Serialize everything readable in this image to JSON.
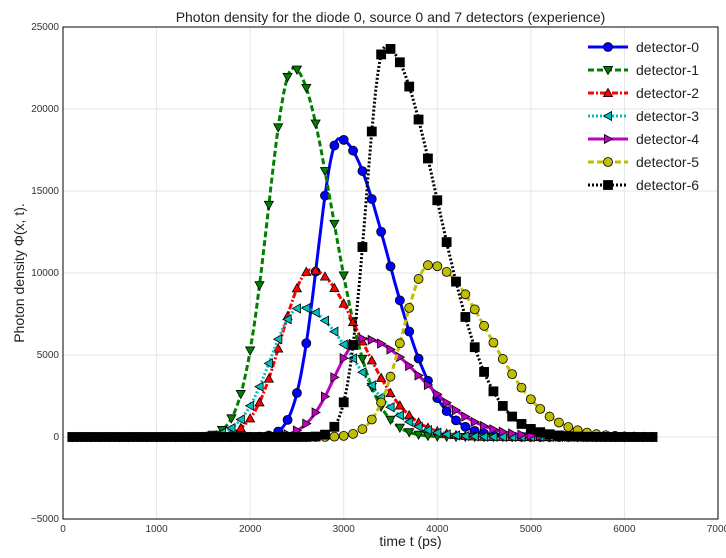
{
  "chart_data": {
    "type": "line",
    "title": "Photon density for the diode 0, source 0 and 7 detectors  (experience)",
    "xlabel": "time t (ps)",
    "ylabel": "Photon density Φ(x, t).",
    "xlim": [
      0,
      7000
    ],
    "ylim": [
      -5000,
      25000
    ],
    "xticks": [
      0,
      1000,
      2000,
      3000,
      4000,
      5000,
      6000,
      7000
    ],
    "xtick_labels": [
      "0",
      "1000",
      "2000",
      "3000",
      "4000",
      "5000",
      "6000",
      "7000"
    ],
    "yticks": [
      -5000,
      0,
      5000,
      10000,
      15000,
      20000,
      25000
    ],
    "ytick_labels": [
      "−5000",
      "0",
      "5000",
      "10000",
      "15000",
      "20000",
      "25000"
    ],
    "grid": true,
    "legend_position": "top-right",
    "series": [
      {
        "name": "detector-0",
        "color": "#0000ff",
        "linestyle": "solid",
        "marker": "circle",
        "peak_x": 2950,
        "peak_y": 18200,
        "sigma_left": 230,
        "sigma_right": 520
      },
      {
        "name": "detector-1",
        "color": "#008000",
        "linestyle": "dashed",
        "marker": "triangle-down",
        "peak_x": 2460,
        "peak_y": 22500,
        "sigma_left": 270,
        "sigma_right": 420
      },
      {
        "name": "detector-2",
        "color": "#ff0000",
        "linestyle": "dashdot",
        "marker": "triangle-up",
        "peak_x": 2650,
        "peak_y": 10200,
        "sigma_left": 310,
        "sigma_right": 520
      },
      {
        "name": "detector-3",
        "color": "#00bfbf",
        "linestyle": "dotted",
        "marker": "triangle-left",
        "peak_x": 2540,
        "peak_y": 7900,
        "sigma_left": 320,
        "sigma_right": 560
      },
      {
        "name": "detector-4",
        "color": "#bf00bf",
        "linestyle": "solid",
        "marker": "triangle-right",
        "peak_x": 3200,
        "peak_y": 6000,
        "sigma_left": 300,
        "sigma_right": 620
      },
      {
        "name": "detector-5",
        "color": "#bfbf00",
        "linestyle": "dashed",
        "marker": "circle",
        "peak_x": 3920,
        "peak_y": 10500,
        "sigma_left": 290,
        "sigma_right": 620
      },
      {
        "name": "detector-6",
        "color": "#000000",
        "linestyle": "dotted",
        "marker": "square",
        "peak_x": 3440,
        "peak_y": 23800,
        "sigma_left": 200,
        "sigma_right": 560
      }
    ]
  }
}
